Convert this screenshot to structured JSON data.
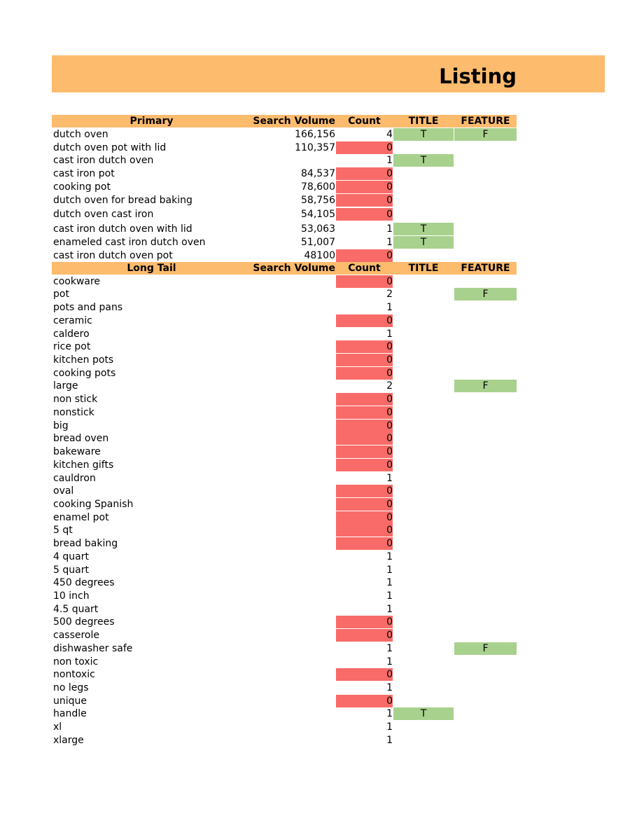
{
  "title": "Listing",
  "primary_header": {
    "keyword": "Primary",
    "volume": "Search Volume",
    "count": "Count",
    "title": "TITLE",
    "feature": "FEATURE"
  },
  "primary": [
    {
      "kw": "dutch oven",
      "vol": "166,156",
      "count": "4",
      "t": "T",
      "f": "F"
    },
    {
      "kw": "dutch oven pot with lid",
      "vol": "110,357",
      "count": "0",
      "t": "",
      "f": ""
    },
    {
      "kw": "cast iron dutch oven",
      "vol": "",
      "count": "1",
      "t": "T",
      "f": ""
    },
    {
      "kw": "cast iron pot",
      "vol": "84,537",
      "count": "0",
      "t": "",
      "f": ""
    },
    {
      "kw": "cooking pot",
      "vol": "78,600",
      "count": "0",
      "t": "",
      "f": ""
    },
    {
      "kw": "dutch oven for bread baking",
      "vol": "58,756",
      "count": "0",
      "t": "",
      "f": ""
    },
    {
      "kw": "dutch oven cast iron",
      "vol": "54,105",
      "count": "0",
      "t": "",
      "f": ""
    },
    {
      "kw": "cast iron dutch oven with lid",
      "vol": "53,063",
      "count": "1",
      "t": "T",
      "f": ""
    },
    {
      "kw": "enameled cast iron dutch oven",
      "vol": "51,007",
      "count": "1",
      "t": "T",
      "f": ""
    },
    {
      "kw": "cast iron dutch oven pot",
      "vol": "48100",
      "count": "0",
      "t": "",
      "f": ""
    }
  ],
  "longtail_header": {
    "keyword": "Long Tail",
    "volume": "Search Volume",
    "count": "Count",
    "title": "TITLE",
    "feature": "FEATURE"
  },
  "longtail": [
    {
      "kw": "cookware",
      "count": "0",
      "t": "",
      "f": ""
    },
    {
      "kw": "pot",
      "count": "2",
      "t": "",
      "f": "F"
    },
    {
      "kw": "pots and pans",
      "count": "1",
      "t": "",
      "f": ""
    },
    {
      "kw": "ceramic",
      "count": "0",
      "t": "",
      "f": ""
    },
    {
      "kw": "caldero",
      "count": "1",
      "t": "",
      "f": ""
    },
    {
      "kw": "rice pot",
      "count": "0",
      "t": "",
      "f": ""
    },
    {
      "kw": "kitchen pots",
      "count": "0",
      "t": "",
      "f": ""
    },
    {
      "kw": "cooking pots",
      "count": "0",
      "t": "",
      "f": ""
    },
    {
      "kw": "large",
      "count": "2",
      "t": "",
      "f": "F"
    },
    {
      "kw": "non stick",
      "count": "0",
      "t": "",
      "f": ""
    },
    {
      "kw": "nonstick",
      "count": "0",
      "t": "",
      "f": ""
    },
    {
      "kw": "big",
      "count": "0",
      "t": "",
      "f": ""
    },
    {
      "kw": "bread oven",
      "count": "0",
      "t": "",
      "f": ""
    },
    {
      "kw": "bakeware",
      "count": "0",
      "t": "",
      "f": ""
    },
    {
      "kw": "kitchen gifts",
      "count": "0",
      "t": "",
      "f": ""
    },
    {
      "kw": "cauldron",
      "count": "1",
      "t": "",
      "f": ""
    },
    {
      "kw": "oval",
      "count": "0",
      "t": "",
      "f": ""
    },
    {
      "kw": "cooking Spanish",
      "count": "0",
      "t": "",
      "f": ""
    },
    {
      "kw": "enamel pot",
      "count": "0",
      "t": "",
      "f": ""
    },
    {
      "kw": "5 qt",
      "count": "0",
      "t": "",
      "f": ""
    },
    {
      "kw": "bread baking",
      "count": "0",
      "t": "",
      "f": ""
    },
    {
      "kw": "4 quart",
      "count": "1",
      "t": "",
      "f": ""
    },
    {
      "kw": "5 quart",
      "count": "1",
      "t": "",
      "f": ""
    },
    {
      "kw": "450 degrees",
      "count": "1",
      "t": "",
      "f": ""
    },
    {
      "kw": "10 inch",
      "count": "1",
      "t": "",
      "f": ""
    },
    {
      "kw": "4.5 quart",
      "count": "1",
      "t": "",
      "f": ""
    },
    {
      "kw": "500 degrees",
      "count": "0",
      "t": "",
      "f": ""
    },
    {
      "kw": "casserole",
      "count": "0",
      "t": "",
      "f": ""
    },
    {
      "kw": "dishwasher safe",
      "count": "1",
      "t": "",
      "f": "F"
    },
    {
      "kw": "non toxic",
      "count": "1",
      "t": "",
      "f": ""
    },
    {
      "kw": "nontoxic",
      "count": "0",
      "t": "",
      "f": ""
    },
    {
      "kw": "no legs",
      "count": "1",
      "t": "",
      "f": ""
    },
    {
      "kw": "unique",
      "count": "0",
      "t": "",
      "f": ""
    },
    {
      "kw": "handle",
      "count": "1",
      "t": "T",
      "f": ""
    },
    {
      "kw": "xl",
      "count": "1",
      "t": "",
      "f": ""
    },
    {
      "kw": "xlarge",
      "count": "1",
      "t": "",
      "f": ""
    }
  ],
  "colors": {
    "header": "#fdbb6e",
    "zero": "#f86b68",
    "match": "#a9d18e"
  }
}
